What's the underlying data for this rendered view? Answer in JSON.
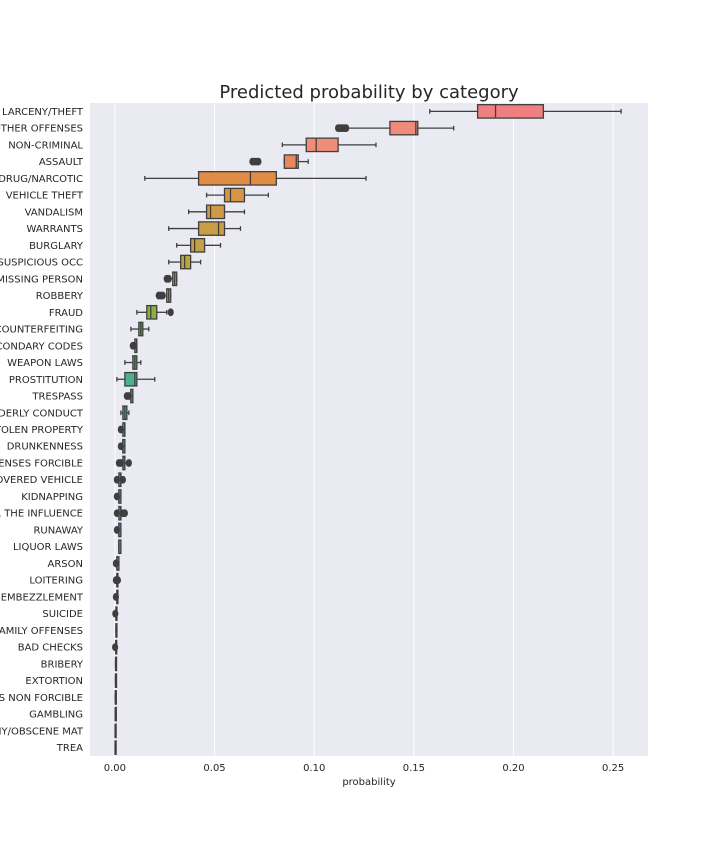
{
  "chart_data": {
    "type": "boxplot",
    "title": "Predicted probability by category",
    "xlabel": "probability",
    "ylabel": "",
    "xlim": [
      -0.0125,
      0.2675
    ],
    "xticks": [
      0.0,
      0.05,
      0.1,
      0.15,
      0.2,
      0.25
    ],
    "xtick_labels": [
      "0.00",
      "0.05",
      "0.10",
      "0.15",
      "0.20",
      "0.25"
    ],
    "grid": true,
    "categories": [
      {
        "label": "LARCENY/THEFT",
        "color": "#f08080",
        "whislo": 0.158,
        "q1": 0.182,
        "med": 0.191,
        "q3": 0.215,
        "whishi": 0.254,
        "fliers": []
      },
      {
        "label": "OTHER OFFENSES",
        "color": "#ee8b7c",
        "whislo": 0.117,
        "q1": 0.138,
        "med": 0.151,
        "q3": 0.152,
        "whishi": 0.17,
        "fliers": [
          0.112,
          0.113,
          0.114,
          0.115,
          0.116
        ]
      },
      {
        "label": "NON-CRIMINAL",
        "color": "#ee8e76",
        "whislo": 0.084,
        "q1": 0.096,
        "med": 0.101,
        "q3": 0.112,
        "whishi": 0.131,
        "fliers": []
      },
      {
        "label": "ASSAULT",
        "color": "#e9875a",
        "whislo": 0.085,
        "q1": 0.085,
        "med": 0.091,
        "q3": 0.092,
        "whishi": 0.097,
        "fliers": [
          0.069,
          0.07,
          0.071,
          0.072
        ]
      },
      {
        "label": "DRUG/NARCOTIC",
        "color": "#df8c44",
        "whislo": 0.015,
        "q1": 0.042,
        "med": 0.068,
        "q3": 0.081,
        "whishi": 0.126,
        "fliers": []
      },
      {
        "label": "VEHICLE THEFT",
        "color": "#d79646",
        "whislo": 0.046,
        "q1": 0.055,
        "med": 0.058,
        "q3": 0.065,
        "whishi": 0.077,
        "fliers": []
      },
      {
        "label": "VANDALISM",
        "color": "#cf9a48",
        "whislo": 0.037,
        "q1": 0.046,
        "med": 0.048,
        "q3": 0.055,
        "whishi": 0.065,
        "fliers": []
      },
      {
        "label": "WARRANTS",
        "color": "#c99e47",
        "whislo": 0.027,
        "q1": 0.042,
        "med": 0.052,
        "q3": 0.055,
        "whishi": 0.063,
        "fliers": []
      },
      {
        "label": "BURGLARY",
        "color": "#c2a245",
        "whislo": 0.031,
        "q1": 0.038,
        "med": 0.04,
        "q3": 0.045,
        "whishi": 0.053,
        "fliers": []
      },
      {
        "label": "SUSPICIOUS OCC",
        "color": "#b9a53f",
        "whislo": 0.027,
        "q1": 0.033,
        "med": 0.035,
        "q3": 0.038,
        "whishi": 0.043,
        "fliers": []
      },
      {
        "label": "MISSING PERSON",
        "color": "#b0a93d",
        "whislo": 0.028,
        "q1": 0.029,
        "med": 0.03,
        "q3": 0.031,
        "whishi": 0.031,
        "fliers": [
          0.026,
          0.027
        ]
      },
      {
        "label": "ROBBERY",
        "color": "#a6ad3d",
        "whislo": 0.026,
        "q1": 0.026,
        "med": 0.027,
        "q3": 0.028,
        "whishi": 0.028,
        "fliers": [
          0.022,
          0.023,
          0.024
        ]
      },
      {
        "label": "FRAUD",
        "color": "#8ab042",
        "whislo": 0.011,
        "q1": 0.016,
        "med": 0.018,
        "q3": 0.021,
        "whishi": 0.026,
        "fliers": [
          0.028
        ]
      },
      {
        "label": "COUNTERFEITING",
        "color": "#6db347",
        "whislo": 0.008,
        "q1": 0.012,
        "med": 0.013,
        "q3": 0.014,
        "whishi": 0.017,
        "fliers": []
      },
      {
        "label": "SECONDARY CODES",
        "color": "#55b463",
        "whislo": 0.01,
        "q1": 0.01,
        "med": 0.011,
        "q3": 0.011,
        "whishi": 0.011,
        "fliers": [
          0.009,
          0.0095
        ]
      },
      {
        "label": "WEAPON LAWS",
        "color": "#4db27c",
        "whislo": 0.005,
        "q1": 0.009,
        "med": 0.01,
        "q3": 0.011,
        "whishi": 0.013,
        "fliers": []
      },
      {
        "label": "PROSTITUTION",
        "color": "#4bb18c",
        "whislo": 0.001,
        "q1": 0.005,
        "med": 0.01,
        "q3": 0.011,
        "whishi": 0.02,
        "fliers": []
      },
      {
        "label": "TRESPASS",
        "color": "#4ab098",
        "whislo": 0.008,
        "q1": 0.008,
        "med": 0.008,
        "q3": 0.009,
        "whishi": 0.009,
        "fliers": [
          0.006,
          0.007
        ]
      },
      {
        "label": "DISORDERLY CONDUCT",
        "color": "#48aea2",
        "whislo": 0.003,
        "q1": 0.004,
        "med": 0.005,
        "q3": 0.006,
        "whishi": 0.007,
        "fliers": []
      },
      {
        "label": "STOLEN PROPERTY",
        "color": "#47adab",
        "whislo": 0.004,
        "q1": 0.004,
        "med": 0.005,
        "q3": 0.005,
        "whishi": 0.005,
        "fliers": [
          0.003
        ]
      },
      {
        "label": "DRUNKENNESS",
        "color": "#47abb4",
        "whislo": 0.004,
        "q1": 0.004,
        "med": 0.004,
        "q3": 0.005,
        "whishi": 0.005,
        "fliers": [
          0.003
        ]
      },
      {
        "label": "SEX OFFENSES FORCIBLE",
        "color": "#48a9bd",
        "whislo": 0.004,
        "q1": 0.004,
        "med": 0.005,
        "q3": 0.005,
        "whishi": 0.006,
        "fliers": [
          0.002,
          0.003,
          0.007
        ]
      },
      {
        "label": "RECOVERED VEHICLE",
        "color": "#4aa7c6",
        "whislo": 0.002,
        "q1": 0.002,
        "med": 0.003,
        "q3": 0.003,
        "whishi": 0.003,
        "fliers": [
          0.001,
          0.004
        ]
      },
      {
        "label": "KIDNAPPING",
        "color": "#4da4d0",
        "whislo": 0.002,
        "q1": 0.002,
        "med": 0.002,
        "q3": 0.003,
        "whishi": 0.003,
        "fliers": [
          0.001
        ]
      },
      {
        "label": "DRIVING UNDER THE INFLUENCE",
        "color": "#55a0da",
        "whislo": 0.002,
        "q1": 0.002,
        "med": 0.003,
        "q3": 0.003,
        "whishi": 0.003,
        "fliers": [
          0.001,
          0.004,
          0.005
        ]
      },
      {
        "label": "RUNAWAY",
        "color": "#639be1",
        "whislo": 0.002,
        "q1": 0.002,
        "med": 0.002,
        "q3": 0.003,
        "whishi": 0.003,
        "fliers": [
          0.001
        ]
      },
      {
        "label": "LIQUOR LAWS",
        "color": "#7595e5",
        "whislo": 0.002,
        "q1": 0.002,
        "med": 0.002,
        "q3": 0.003,
        "whishi": 0.003,
        "fliers": []
      },
      {
        "label": "ARSON",
        "color": "#8a8fe8",
        "whislo": 0.001,
        "q1": 0.001,
        "med": 0.001,
        "q3": 0.002,
        "whishi": 0.002,
        "fliers": [
          0.0005
        ]
      },
      {
        "label": "LOITERING",
        "color": "#9e8ae9",
        "whislo": 0.001,
        "q1": 0.001,
        "med": 0.001,
        "q3": 0.001,
        "whishi": 0.001,
        "fliers": [
          0.0005,
          0.0015
        ]
      },
      {
        "label": "EMBEZZLEMENT",
        "color": "#b085e8",
        "whislo": 0.001,
        "q1": 0.001,
        "med": 0.001,
        "q3": 0.001,
        "whishi": 0.001,
        "fliers": [
          0.0005
        ]
      },
      {
        "label": "SUICIDE",
        "color": "#c081e4",
        "whislo": 0.0005,
        "q1": 0.0005,
        "med": 0.0007,
        "q3": 0.0008,
        "whishi": 0.0008,
        "fliers": [
          0.0002
        ]
      },
      {
        "label": "FAMILY OFFENSES",
        "color": "#cf7ede",
        "whislo": 0.0005,
        "q1": 0.0005,
        "med": 0.0006,
        "q3": 0.0007,
        "whishi": 0.0007,
        "fliers": []
      },
      {
        "label": "BAD CHECKS",
        "color": "#dc7bd6",
        "whislo": 0.0004,
        "q1": 0.0004,
        "med": 0.0005,
        "q3": 0.0006,
        "whishi": 0.0006,
        "fliers": [
          0.0001
        ]
      },
      {
        "label": "BRIBERY",
        "color": "#e57bcb",
        "whislo": 0.0003,
        "q1": 0.0003,
        "med": 0.0004,
        "q3": 0.0004,
        "whishi": 0.0004,
        "fliers": []
      },
      {
        "label": "EXTORTION",
        "color": "#eb7cbe",
        "whislo": 0.0003,
        "q1": 0.0003,
        "med": 0.0003,
        "q3": 0.0004,
        "whishi": 0.0004,
        "fliers": []
      },
      {
        "label": "SEX OFFENSES NON FORCIBLE",
        "color": "#ef7fb0",
        "whislo": 0.0002,
        "q1": 0.0002,
        "med": 0.0003,
        "q3": 0.0003,
        "whishi": 0.0003,
        "fliers": []
      },
      {
        "label": "GAMBLING",
        "color": "#f182a2",
        "whislo": 0.0002,
        "q1": 0.0002,
        "med": 0.0002,
        "q3": 0.0003,
        "whishi": 0.0003,
        "fliers": []
      },
      {
        "label": "PORNOGRAPHY/OBSCENE MAT",
        "color": "#f28594",
        "whislo": 0.0001,
        "q1": 0.0001,
        "med": 0.0002,
        "q3": 0.0002,
        "whishi": 0.0002,
        "fliers": []
      },
      {
        "label": "TREA",
        "color": "#f28a88",
        "whislo": 0.0001,
        "q1": 0.0001,
        "med": 0.0001,
        "q3": 0.0002,
        "whishi": 0.0002,
        "fliers": []
      }
    ]
  }
}
